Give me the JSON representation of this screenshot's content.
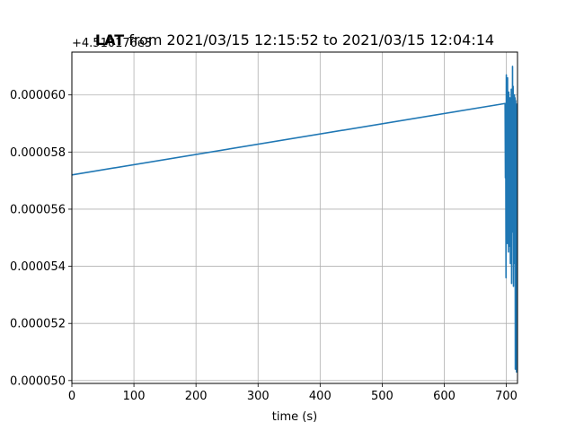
{
  "chart_data": {
    "type": "line",
    "title_bold": "LAT",
    "title_rest": " from 2021/03/15 12:15:52 to 2021/03/15 12:04:14",
    "offset_label": "+4.510176e3",
    "xlabel": "time (s)",
    "ylabel": "",
    "xlim": [
      0,
      718
    ],
    "ylim": [
      4.99e-05,
      6.15e-05
    ],
    "xticks": [
      0,
      100,
      200,
      300,
      400,
      500,
      600,
      700
    ],
    "yticks": [
      5e-05,
      5.2e-05,
      5.4e-05,
      5.6e-05,
      5.8e-05,
      6e-05
    ],
    "ytick_labels": [
      "0.000050",
      "0.000052",
      "0.000054",
      "0.000056",
      "0.000058",
      "0.000060"
    ],
    "grid": true,
    "series": [
      {
        "color": "#1f77b4",
        "x": [
          0,
          698,
          698.5,
          699,
          699.5,
          700,
          700.5,
          701,
          701.5,
          702,
          702.5,
          703,
          703.5,
          704,
          704.5,
          705,
          705.5,
          706,
          706.5,
          707,
          707.5,
          708,
          708.5,
          709,
          709.5,
          710,
          710.5,
          711,
          711.5,
          712,
          712.5,
          713,
          713.5,
          714,
          714.5,
          715,
          715.5,
          716,
          716.5,
          717
        ],
        "y": [
          5.72e-05,
          5.97e-05,
          5.71e-05,
          5.88e-05,
          5.36e-05,
          6.07e-05,
          5.59e-05,
          6.04e-05,
          5.48e-05,
          6.06e-05,
          5.61e-05,
          5.98e-05,
          5.45e-05,
          6.01e-05,
          5.53e-05,
          5.94e-05,
          5.47e-05,
          5.99e-05,
          5.41e-05,
          5.96e-05,
          5.58e-05,
          6.02e-05,
          5.34e-05,
          5.98e-05,
          5.52e-05,
          6.1e-05,
          5.66e-05,
          6.03e-05,
          5.33e-05,
          5.96e-05,
          5.61e-05,
          6e-05,
          5.41e-05,
          5.99e-05,
          5.04e-05,
          5.98e-05,
          5.66e-05,
          5.92e-05,
          5.03e-05,
          5.97e-05
        ]
      }
    ]
  }
}
